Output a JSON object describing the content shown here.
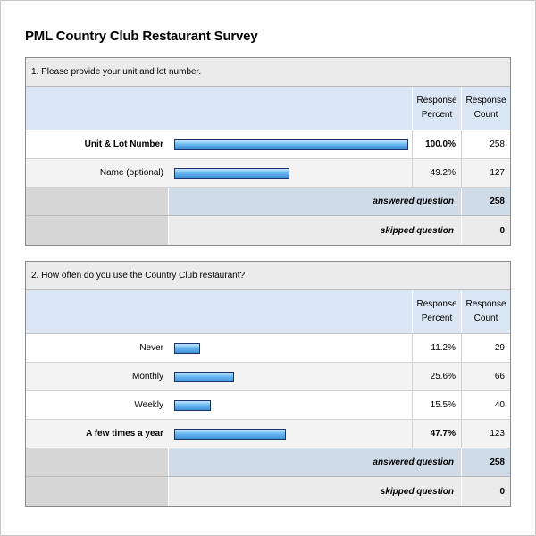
{
  "title": "PML Country Club Restaurant Survey",
  "headers": {
    "percent_line1": "Response",
    "percent_line2": "Percent",
    "count_line1": "Response",
    "count_line2": "Count"
  },
  "questions": [
    {
      "question": "1. Please provide your unit and lot number.",
      "rows": [
        {
          "label": "Unit & Lot Number",
          "percent": "100.0%",
          "percent_value": 100.0,
          "count": "258",
          "bold": true
        },
        {
          "label": "Name (optional)",
          "percent": "49.2%",
          "percent_value": 49.2,
          "count": "127",
          "bold": false
        }
      ],
      "answered_label": "answered question",
      "answered": "258",
      "skipped_label": "skipped question",
      "skipped": "0"
    },
    {
      "question": "2. How often do you use the Country Club restaurant?",
      "rows": [
        {
          "label": "Never",
          "percent": "11.2%",
          "percent_value": 11.2,
          "count": "29",
          "bold": false
        },
        {
          "label": "Monthly",
          "percent": "25.6%",
          "percent_value": 25.6,
          "count": "66",
          "bold": false
        },
        {
          "label": "Weekly",
          "percent": "15.5%",
          "percent_value": 15.5,
          "count": "40",
          "bold": false
        },
        {
          "label": "A few times a year",
          "percent": "47.7%",
          "percent_value": 47.7,
          "count": "123",
          "bold": true
        }
      ],
      "answered_label": "answered question",
      "answered": "258",
      "skipped_label": "skipped question",
      "skipped": "0"
    }
  ]
}
